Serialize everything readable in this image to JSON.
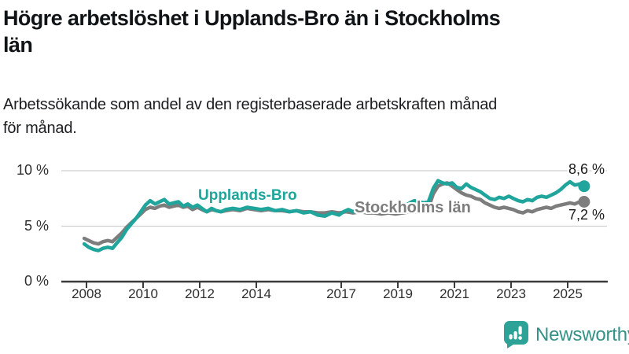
{
  "header": {
    "title_lines": [
      "Högre arbetslöshet i Upplands-Bro än i Stockholms",
      "län"
    ],
    "subtitle_lines": [
      "Arbetssökande som andel av den registerbaserade arbetskraften månad",
      "för månad."
    ]
  },
  "chart_data": {
    "type": "line",
    "title": "Högre arbetslöshet i Upplands-Bro än i Stockholms län",
    "subtitle": "Arbetssökande som andel av den registerbaserade arbetskraften månad för månad.",
    "xlabel": "",
    "ylabel": "",
    "unit": "% av registerbaserad arbetskraft",
    "ylim": [
      0,
      10
    ],
    "grid": "horizontal",
    "gridline_values": [
      5,
      10
    ],
    "yticks": [
      {
        "value": 0,
        "label": "0 %"
      },
      {
        "value": 5,
        "label": "5 %"
      },
      {
        "value": 10,
        "label": "10 %"
      }
    ],
    "xticks": [
      2008,
      2010,
      2012,
      2014,
      2017,
      2019,
      2021,
      2023,
      2025
    ],
    "legend_position": "inline-labels",
    "colors": {
      "axis": "#3b3b3b",
      "gridline": "#cfcfcf",
      "tick_text": "#2e2e2e"
    },
    "series": [
      {
        "name": "Upplands-Bro",
        "color": "#1fa59c",
        "end_label": "8,6 %",
        "end_value": 8.6,
        "points": [
          [
            2007.92,
            3.4
          ],
          [
            2008.08,
            3.1
          ],
          [
            2008.25,
            2.9
          ],
          [
            2008.42,
            2.8
          ],
          [
            2008.58,
            3.0
          ],
          [
            2008.75,
            3.1
          ],
          [
            2008.92,
            3.0
          ],
          [
            2009.08,
            3.5
          ],
          [
            2009.25,
            4.0
          ],
          [
            2009.42,
            4.7
          ],
          [
            2009.58,
            5.2
          ],
          [
            2009.75,
            5.7
          ],
          [
            2009.92,
            6.3
          ],
          [
            2010.08,
            6.9
          ],
          [
            2010.25,
            7.3
          ],
          [
            2010.42,
            7.0
          ],
          [
            2010.58,
            7.2
          ],
          [
            2010.75,
            7.4
          ],
          [
            2010.92,
            7.0
          ],
          [
            2011.08,
            7.1
          ],
          [
            2011.25,
            7.2
          ],
          [
            2011.42,
            6.8
          ],
          [
            2011.58,
            7.0
          ],
          [
            2011.75,
            6.7
          ],
          [
            2011.92,
            6.9
          ],
          [
            2012.08,
            6.6
          ],
          [
            2012.25,
            6.3
          ],
          [
            2012.42,
            6.6
          ],
          [
            2012.58,
            6.4
          ],
          [
            2012.75,
            6.3
          ],
          [
            2012.92,
            6.5
          ],
          [
            2013.17,
            6.6
          ],
          [
            2013.42,
            6.5
          ],
          [
            2013.67,
            6.7
          ],
          [
            2013.92,
            6.6
          ],
          [
            2014.17,
            6.5
          ],
          [
            2014.42,
            6.6
          ],
          [
            2014.67,
            6.4
          ],
          [
            2014.92,
            6.5
          ],
          [
            2015.17,
            6.3
          ],
          [
            2015.42,
            6.4
          ],
          [
            2015.67,
            6.2
          ],
          [
            2015.92,
            6.3
          ],
          [
            2016.17,
            6.0
          ],
          [
            2016.42,
            5.9
          ],
          [
            2016.67,
            6.2
          ],
          [
            2016.92,
            6.0
          ],
          [
            2017.08,
            6.3
          ],
          [
            2017.25,
            6.5
          ],
          [
            2017.42,
            6.3
          ],
          [
            2017.58,
            6.5
          ],
          [
            2017.75,
            6.4
          ],
          [
            2017.92,
            6.3
          ],
          [
            2018.17,
            6.5
          ],
          [
            2018.42,
            6.4
          ],
          [
            2018.67,
            6.6
          ],
          [
            2018.92,
            6.5
          ],
          [
            2019.17,
            6.7
          ],
          [
            2019.42,
            7.1
          ],
          [
            2019.58,
            7.3
          ],
          [
            2019.75,
            7.2
          ],
          [
            2019.92,
            7.1
          ],
          [
            2020.08,
            7.2
          ],
          [
            2020.25,
            8.4
          ],
          [
            2020.42,
            9.1
          ],
          [
            2020.58,
            8.9
          ],
          [
            2020.75,
            8.8
          ],
          [
            2020.92,
            8.9
          ],
          [
            2021.08,
            8.5
          ],
          [
            2021.25,
            8.4
          ],
          [
            2021.42,
            8.8
          ],
          [
            2021.58,
            8.5
          ],
          [
            2021.75,
            8.3
          ],
          [
            2021.92,
            8.1
          ],
          [
            2022.08,
            7.8
          ],
          [
            2022.25,
            7.5
          ],
          [
            2022.42,
            7.4
          ],
          [
            2022.58,
            7.6
          ],
          [
            2022.75,
            7.5
          ],
          [
            2022.92,
            7.7
          ],
          [
            2023.08,
            7.5
          ],
          [
            2023.25,
            7.3
          ],
          [
            2023.42,
            7.2
          ],
          [
            2023.58,
            7.4
          ],
          [
            2023.75,
            7.3
          ],
          [
            2023.92,
            7.6
          ],
          [
            2024.08,
            7.7
          ],
          [
            2024.25,
            7.6
          ],
          [
            2024.42,
            7.8
          ],
          [
            2024.58,
            8.0
          ],
          [
            2024.75,
            8.3
          ],
          [
            2024.92,
            8.7
          ],
          [
            2025.08,
            9.0
          ],
          [
            2025.25,
            8.7
          ],
          [
            2025.42,
            8.8
          ],
          [
            2025.58,
            8.6
          ]
        ]
      },
      {
        "name": "Stockholms län",
        "color": "#7d7d7d",
        "end_label": "7,2 %",
        "end_value": 7.2,
        "points": [
          [
            2007.92,
            3.9
          ],
          [
            2008.08,
            3.7
          ],
          [
            2008.25,
            3.5
          ],
          [
            2008.42,
            3.4
          ],
          [
            2008.58,
            3.6
          ],
          [
            2008.75,
            3.7
          ],
          [
            2008.92,
            3.6
          ],
          [
            2009.08,
            4.0
          ],
          [
            2009.25,
            4.4
          ],
          [
            2009.42,
            4.9
          ],
          [
            2009.58,
            5.3
          ],
          [
            2009.75,
            5.7
          ],
          [
            2009.92,
            6.1
          ],
          [
            2010.08,
            6.5
          ],
          [
            2010.25,
            6.7
          ],
          [
            2010.42,
            6.6
          ],
          [
            2010.58,
            6.8
          ],
          [
            2010.75,
            6.9
          ],
          [
            2010.92,
            6.7
          ],
          [
            2011.08,
            6.8
          ],
          [
            2011.25,
            6.9
          ],
          [
            2011.42,
            6.7
          ],
          [
            2011.58,
            6.8
          ],
          [
            2011.75,
            6.5
          ],
          [
            2011.92,
            6.7
          ],
          [
            2012.08,
            6.5
          ],
          [
            2012.25,
            6.3
          ],
          [
            2012.42,
            6.5
          ],
          [
            2012.58,
            6.4
          ],
          [
            2012.75,
            6.3
          ],
          [
            2012.92,
            6.4
          ],
          [
            2013.17,
            6.5
          ],
          [
            2013.42,
            6.4
          ],
          [
            2013.67,
            6.6
          ],
          [
            2013.92,
            6.5
          ],
          [
            2014.17,
            6.4
          ],
          [
            2014.42,
            6.5
          ],
          [
            2014.67,
            6.4
          ],
          [
            2014.92,
            6.4
          ],
          [
            2015.17,
            6.3
          ],
          [
            2015.42,
            6.4
          ],
          [
            2015.67,
            6.3
          ],
          [
            2015.92,
            6.3
          ],
          [
            2016.17,
            6.2
          ],
          [
            2016.42,
            6.2
          ],
          [
            2016.67,
            6.3
          ],
          [
            2016.92,
            6.2
          ],
          [
            2017.17,
            6.3
          ],
          [
            2017.42,
            6.2
          ],
          [
            2017.67,
            6.3
          ],
          [
            2017.92,
            6.2
          ],
          [
            2018.17,
            6.2
          ],
          [
            2018.42,
            6.1
          ],
          [
            2018.67,
            6.2
          ],
          [
            2018.92,
            6.1
          ],
          [
            2019.17,
            6.2
          ],
          [
            2019.42,
            6.3
          ],
          [
            2019.67,
            6.3
          ],
          [
            2019.92,
            6.4
          ],
          [
            2020.08,
            6.6
          ],
          [
            2020.25,
            7.9
          ],
          [
            2020.42,
            8.6
          ],
          [
            2020.58,
            8.8
          ],
          [
            2020.75,
            8.9
          ],
          [
            2020.92,
            8.6
          ],
          [
            2021.08,
            8.3
          ],
          [
            2021.25,
            8.0
          ],
          [
            2021.42,
            7.8
          ],
          [
            2021.58,
            7.7
          ],
          [
            2021.75,
            7.5
          ],
          [
            2021.92,
            7.4
          ],
          [
            2022.08,
            7.1
          ],
          [
            2022.25,
            6.9
          ],
          [
            2022.42,
            6.7
          ],
          [
            2022.58,
            6.6
          ],
          [
            2022.75,
            6.7
          ],
          [
            2022.92,
            6.6
          ],
          [
            2023.08,
            6.5
          ],
          [
            2023.25,
            6.3
          ],
          [
            2023.42,
            6.2
          ],
          [
            2023.58,
            6.4
          ],
          [
            2023.75,
            6.3
          ],
          [
            2023.92,
            6.5
          ],
          [
            2024.08,
            6.6
          ],
          [
            2024.25,
            6.7
          ],
          [
            2024.42,
            6.6
          ],
          [
            2024.58,
            6.8
          ],
          [
            2024.75,
            6.9
          ],
          [
            2024.92,
            7.0
          ],
          [
            2025.08,
            7.1
          ],
          [
            2025.25,
            7.0
          ],
          [
            2025.42,
            7.2
          ],
          [
            2025.58,
            7.2
          ]
        ]
      }
    ]
  },
  "footer": {
    "brand": "Newsworthy",
    "brand_color": "#339187",
    "icon_color": "#2ca396"
  }
}
